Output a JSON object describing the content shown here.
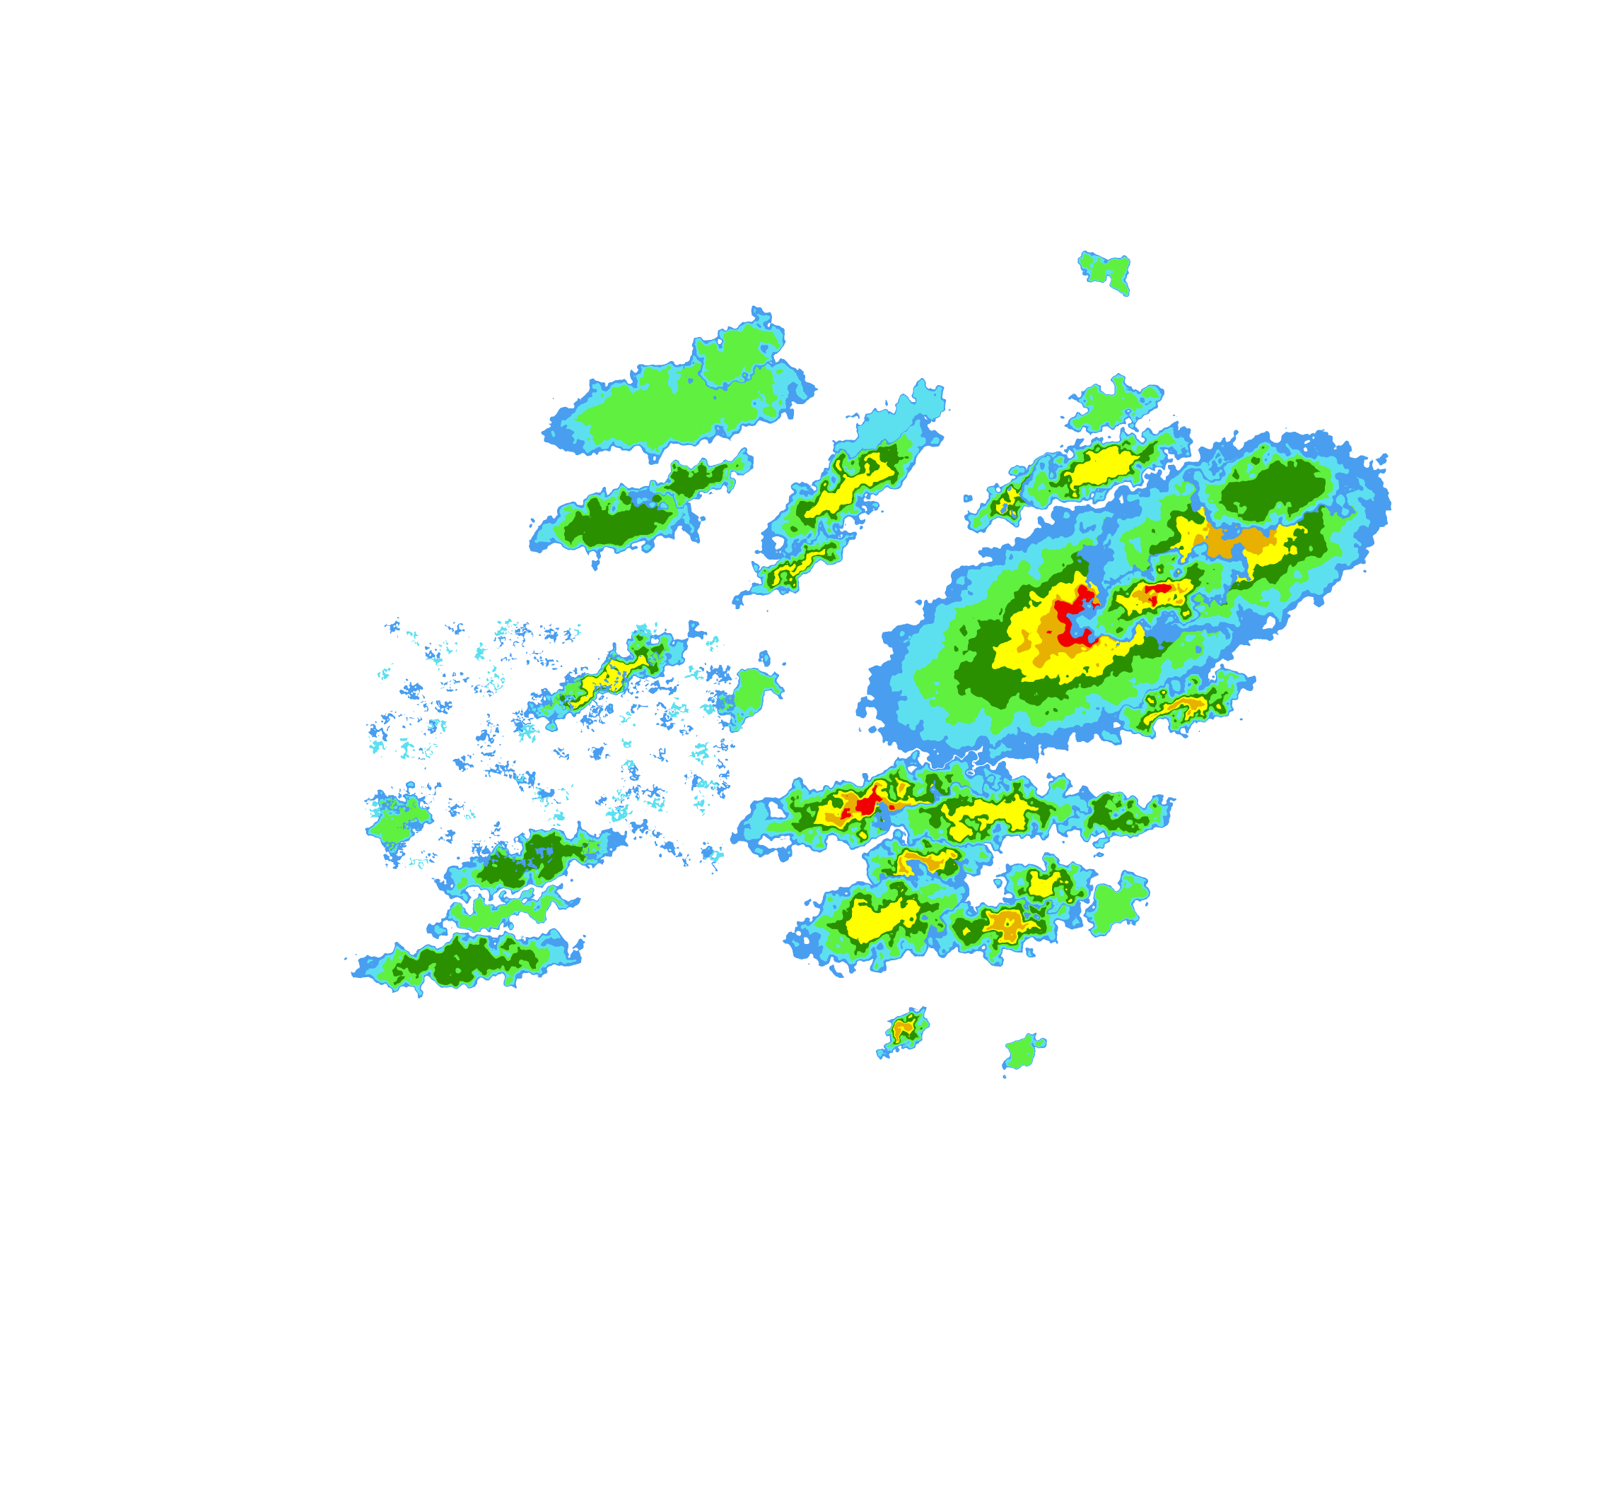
{
  "map": {
    "type": "radar-reflectivity",
    "background": "#ffffff",
    "palette": [
      "#4a9ef0",
      "#5ce0f0",
      "#60f040",
      "#2a9000",
      "#ffff00",
      "#e8b000",
      "#f00000"
    ]
  }
}
